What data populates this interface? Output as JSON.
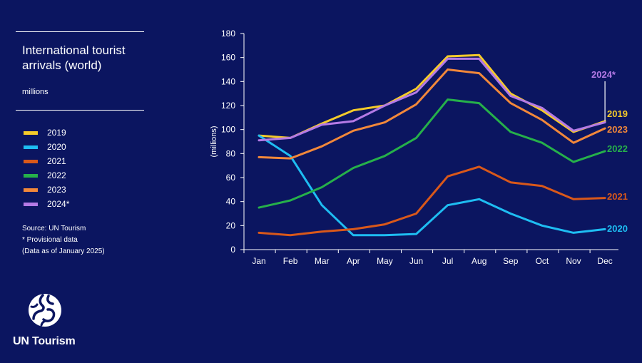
{
  "panel": {
    "title_line1": "International tourist",
    "title_line2": "arrivals (world)",
    "unit": "millions",
    "source": "Source: UN Tourism",
    "note": "* Provisional data",
    "data_as_of": "(Data as of January 2025)"
  },
  "brand": {
    "name": "UN Tourism",
    "logo_icon": "un-tourism-logo-icon"
  },
  "chart_data": {
    "type": "line",
    "title": "International tourist arrivals (world)",
    "ylabel": "(millions)",
    "xlabel": "",
    "ylim": [
      0,
      180
    ],
    "yticks": [
      "0",
      "20",
      "40",
      "60",
      "80",
      "100",
      "120",
      "140",
      "160",
      "180"
    ],
    "categories": [
      "Jan",
      "Feb",
      "Mar",
      "Apr",
      "May",
      "Jun",
      "Jul",
      "Aug",
      "Sep",
      "Oct",
      "Nov",
      "Dec"
    ],
    "grid": false,
    "legend": "left",
    "series": [
      {
        "name": "2019",
        "label": "2019",
        "color": "#f5cb2a",
        "values": [
          95,
          93,
          105,
          116,
          120,
          134,
          161,
          162,
          130,
          116,
          98,
          107
        ]
      },
      {
        "name": "2020",
        "label": "2020",
        "color": "#1ebdf2",
        "values": [
          95,
          78,
          37,
          12,
          12,
          13,
          37,
          42,
          30,
          20,
          14,
          17
        ]
      },
      {
        "name": "2021",
        "label": "2021",
        "color": "#d9581a",
        "values": [
          14,
          12,
          15,
          17,
          21,
          30,
          61,
          69,
          56,
          53,
          42,
          43
        ]
      },
      {
        "name": "2022",
        "label": "2022",
        "color": "#26b04a",
        "values": [
          35,
          41,
          52,
          68,
          78,
          93,
          125,
          122,
          98,
          89,
          73,
          82
        ]
      },
      {
        "name": "2023",
        "label": "2023",
        "color": "#f2883a",
        "values": [
          77,
          76,
          86,
          99,
          106,
          121,
          150,
          147,
          122,
          108,
          89,
          101
        ]
      },
      {
        "name": "2024*",
        "label": "2024*",
        "color": "#b47ae6",
        "values": [
          91,
          93,
          104,
          107,
          120,
          131,
          159,
          159,
          128,
          118,
          99,
          106
        ]
      }
    ]
  }
}
